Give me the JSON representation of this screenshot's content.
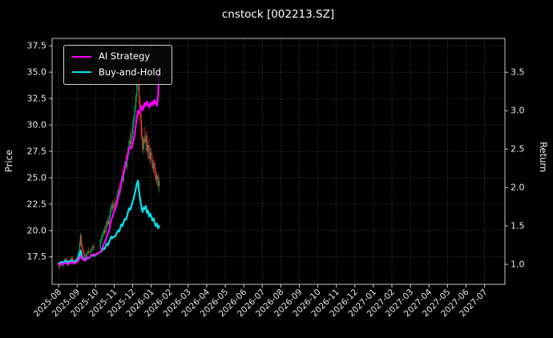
{
  "chart_data": {
    "type": "candlestick",
    "title": "cnstock [002213.SZ]",
    "background": "#000000",
    "grid": true,
    "legend_position": "upper-left",
    "left_axis": {
      "label": "Price",
      "ticks": [
        17.5,
        20.0,
        22.5,
        25.0,
        27.5,
        30.0,
        32.5,
        35.0,
        37.5
      ],
      "range": [
        14.9,
        38.2
      ]
    },
    "right_axis": {
      "label": "Return",
      "ticks": [
        1.0,
        1.5,
        2.0,
        2.5,
        3.0,
        3.5
      ],
      "range": [
        0.74,
        3.94
      ]
    },
    "x_axis": {
      "unit": "months from 2025-08",
      "range": [
        -0.35,
        24.1
      ],
      "tick_positions": [
        0,
        1,
        2,
        3,
        4,
        5,
        6,
        7,
        8,
        9,
        10,
        11,
        12,
        13,
        14,
        15,
        16,
        17,
        18,
        19,
        20,
        21,
        22,
        23
      ],
      "tick_labels": [
        "2025-08",
        "2025-09",
        "2025-10",
        "2025-11",
        "2025-12",
        "2026-01",
        "2026-02",
        "2026-03",
        "2026-04",
        "2026-05",
        "2026-06",
        "2026-07",
        "2026-08",
        "2026-09",
        "2026-10",
        "2026-11",
        "2026-12",
        "2027-01",
        "2027-02",
        "2027-03",
        "2027-04",
        "2027-05",
        "2027-06",
        "2027-07"
      ]
    },
    "candle_colors": {
      "up": "#00b060",
      "down": "#fe3032"
    },
    "candles": [
      [
        0.0,
        16.7,
        16.9,
        16.4,
        16.6
      ],
      [
        0.07,
        16.6,
        16.9,
        16.3,
        16.8
      ],
      [
        0.14,
        16.8,
        17.1,
        16.6,
        17.0
      ],
      [
        0.21,
        17.0,
        17.2,
        16.6,
        16.8
      ],
      [
        0.28,
        16.8,
        17.1,
        16.5,
        17.0
      ],
      [
        0.35,
        17.0,
        17.4,
        16.8,
        17.3
      ],
      [
        0.42,
        17.3,
        17.5,
        16.9,
        17.1
      ],
      [
        0.49,
        17.1,
        17.3,
        16.7,
        16.9
      ],
      [
        0.56,
        16.9,
        17.2,
        16.6,
        17.1
      ],
      [
        0.63,
        17.1,
        17.4,
        16.9,
        17.2
      ],
      [
        0.7,
        17.2,
        17.6,
        17.0,
        17.4
      ],
      [
        0.77,
        17.4,
        17.6,
        16.9,
        17.1
      ],
      [
        0.84,
        17.1,
        17.3,
        16.7,
        16.9
      ],
      [
        0.91,
        16.9,
        17.3,
        16.8,
        17.2
      ],
      [
        1.0,
        17.2,
        17.7,
        17.1,
        17.5
      ],
      [
        1.07,
        17.5,
        18.1,
        17.4,
        17.9
      ],
      [
        1.14,
        17.9,
        19.0,
        17.8,
        18.8
      ],
      [
        1.18,
        18.8,
        19.8,
        18.5,
        19.5
      ],
      [
        1.22,
        19.5,
        19.7,
        18.4,
        18.6
      ],
      [
        1.28,
        18.6,
        18.9,
        17.8,
        18.0
      ],
      [
        1.35,
        18.0,
        18.3,
        17.5,
        17.7
      ],
      [
        1.42,
        17.7,
        18.0,
        17.3,
        17.5
      ],
      [
        1.49,
        17.5,
        17.9,
        17.4,
        17.8
      ],
      [
        1.56,
        17.8,
        18.2,
        17.6,
        18.0
      ],
      [
        1.63,
        18.0,
        18.4,
        17.7,
        17.9
      ],
      [
        1.7,
        17.9,
        18.2,
        17.5,
        18.1
      ],
      [
        1.77,
        18.1,
        18.5,
        17.9,
        18.3
      ],
      [
        1.84,
        18.3,
        18.7,
        18.0,
        18.5
      ],
      [
        1.91,
        18.5,
        18.8,
        18.1,
        18.3
      ],
      [
        2.25,
        18.3,
        19.2,
        18.2,
        19.1
      ],
      [
        2.31,
        19.1,
        19.6,
        18.8,
        19.3
      ],
      [
        2.37,
        19.3,
        19.8,
        19.0,
        19.6
      ],
      [
        2.43,
        19.6,
        20.2,
        19.4,
        20.0
      ],
      [
        2.49,
        20.0,
        20.5,
        19.6,
        19.8
      ],
      [
        2.55,
        19.8,
        20.6,
        19.7,
        20.4
      ],
      [
        2.61,
        20.4,
        21.1,
        20.2,
        20.9
      ],
      [
        2.67,
        20.9,
        21.4,
        20.4,
        20.6
      ],
      [
        2.73,
        20.6,
        21.5,
        20.5,
        21.3
      ],
      [
        2.79,
        21.3,
        22.1,
        21.1,
        21.9
      ],
      [
        2.85,
        21.9,
        22.6,
        21.6,
        22.4
      ],
      [
        2.91,
        22.4,
        22.9,
        21.8,
        22.1
      ],
      [
        2.97,
        22.1,
        22.7,
        21.9,
        22.5
      ],
      [
        3.03,
        22.5,
        23.1,
        22.1,
        22.4
      ],
      [
        3.09,
        22.4,
        22.9,
        21.9,
        22.7
      ],
      [
        3.15,
        22.7,
        23.5,
        22.5,
        23.3
      ],
      [
        3.21,
        23.3,
        24.0,
        22.9,
        23.8
      ],
      [
        3.27,
        23.8,
        24.5,
        23.3,
        23.6
      ],
      [
        3.33,
        23.6,
        24.4,
        23.4,
        24.2
      ],
      [
        3.39,
        24.2,
        25.3,
        24.0,
        25.0
      ],
      [
        3.45,
        25.0,
        25.9,
        24.5,
        24.7
      ],
      [
        3.51,
        24.7,
        25.7,
        24.5,
        25.5
      ],
      [
        3.57,
        25.5,
        26.6,
        25.3,
        26.3
      ],
      [
        3.63,
        26.3,
        27.2,
        25.8,
        26.0
      ],
      [
        3.69,
        26.0,
        27.0,
        25.7,
        26.8
      ],
      [
        3.75,
        26.8,
        28.0,
        26.6,
        27.7
      ],
      [
        3.81,
        27.7,
        28.8,
        27.2,
        28.5
      ],
      [
        3.87,
        28.5,
        29.6,
        28.0,
        28.2
      ],
      [
        3.93,
        28.2,
        29.3,
        27.9,
        29.1
      ],
      [
        3.99,
        29.1,
        30.3,
        28.7,
        29.9
      ],
      [
        4.05,
        29.9,
        30.9,
        29.2,
        30.6
      ],
      [
        4.11,
        30.6,
        31.9,
        30.3,
        31.6
      ],
      [
        4.17,
        31.6,
        33.0,
        31.2,
        32.7
      ],
      [
        4.23,
        32.7,
        34.2,
        32.2,
        33.8
      ],
      [
        4.29,
        33.8,
        35.2,
        33.2,
        34.5
      ],
      [
        4.35,
        34.5,
        34.8,
        31.6,
        32.0
      ],
      [
        4.41,
        32.0,
        32.8,
        30.0,
        30.4
      ],
      [
        4.47,
        30.4,
        31.2,
        28.6,
        28.9
      ],
      [
        4.53,
        28.9,
        29.8,
        27.4,
        27.7
      ],
      [
        4.59,
        27.7,
        29.0,
        27.3,
        28.7
      ],
      [
        4.65,
        28.7,
        29.8,
        28.2,
        28.4
      ],
      [
        4.71,
        28.4,
        29.3,
        27.6,
        29.0
      ],
      [
        4.77,
        29.0,
        29.5,
        27.2,
        27.5
      ],
      [
        4.83,
        27.5,
        28.5,
        26.8,
        28.1
      ],
      [
        4.89,
        28.1,
        28.8,
        26.5,
        26.8
      ],
      [
        4.95,
        26.8,
        27.8,
        26.2,
        27.4
      ],
      [
        5.01,
        27.4,
        27.9,
        26.4,
        26.7
      ],
      [
        5.07,
        26.7,
        27.2,
        25.6,
        25.9
      ],
      [
        5.13,
        25.9,
        26.7,
        25.4,
        26.4
      ],
      [
        5.19,
        26.4,
        26.8,
        25.1,
        25.4
      ],
      [
        5.25,
        25.4,
        26.0,
        24.5,
        24.8
      ],
      [
        5.31,
        24.8,
        25.6,
        24.3,
        25.2
      ],
      [
        5.37,
        25.2,
        25.5,
        23.9,
        24.2
      ],
      [
        5.43,
        24.2,
        25.0,
        23.6,
        24.7
      ]
    ],
    "series": [
      {
        "name": "AI Strategy",
        "color": "#ff00ff",
        "axis": "right",
        "values": [
          1.0,
          1.0,
          1.01,
          1.0,
          1.01,
          1.02,
          1.01,
          1.0,
          1.01,
          1.02,
          1.03,
          1.02,
          1.01,
          1.02,
          1.03,
          1.05,
          1.08,
          1.11,
          1.09,
          1.07,
          1.06,
          1.05,
          1.06,
          1.08,
          1.09,
          1.1,
          1.12,
          1.13,
          1.12,
          1.16,
          1.19,
          1.22,
          1.26,
          1.28,
          1.32,
          1.37,
          1.4,
          1.45,
          1.52,
          1.58,
          1.62,
          1.67,
          1.7,
          1.74,
          1.8,
          1.87,
          1.92,
          1.98,
          2.07,
          2.12,
          2.18,
          2.27,
          2.32,
          2.38,
          2.45,
          2.5,
          2.53,
          2.51,
          2.56,
          2.62,
          2.7,
          2.8,
          2.92,
          3.0,
          2.96,
          3.02,
          3.06,
          3.0,
          3.05,
          3.1,
          3.06,
          3.12,
          3.08,
          3.04,
          3.1,
          3.07,
          3.12,
          3.08,
          3.14,
          3.1,
          3.06,
          3.18,
          3.5
        ]
      },
      {
        "name": "Buy-and-Hold",
        "color": "#00e5ee",
        "axis": "right",
        "values": [
          1.01,
          1.02,
          1.03,
          1.02,
          1.03,
          1.05,
          1.04,
          1.02,
          1.04,
          1.04,
          1.05,
          1.04,
          1.02,
          1.04,
          1.06,
          1.08,
          1.14,
          1.18,
          1.13,
          1.09,
          1.07,
          1.06,
          1.08,
          1.09,
          1.08,
          1.1,
          1.11,
          1.12,
          1.11,
          1.16,
          1.17,
          1.19,
          1.21,
          1.2,
          1.24,
          1.27,
          1.25,
          1.29,
          1.33,
          1.36,
          1.34,
          1.36,
          1.36,
          1.38,
          1.41,
          1.44,
          1.43,
          1.47,
          1.52,
          1.5,
          1.55,
          1.59,
          1.58,
          1.62,
          1.68,
          1.73,
          1.71,
          1.76,
          1.81,
          1.85,
          1.92,
          1.98,
          2.05,
          2.09,
          1.94,
          1.84,
          1.75,
          1.68,
          1.74,
          1.72,
          1.76,
          1.67,
          1.7,
          1.62,
          1.66,
          1.62,
          1.57,
          1.6,
          1.54,
          1.5,
          1.53,
          1.47,
          1.5
        ]
      }
    ]
  }
}
